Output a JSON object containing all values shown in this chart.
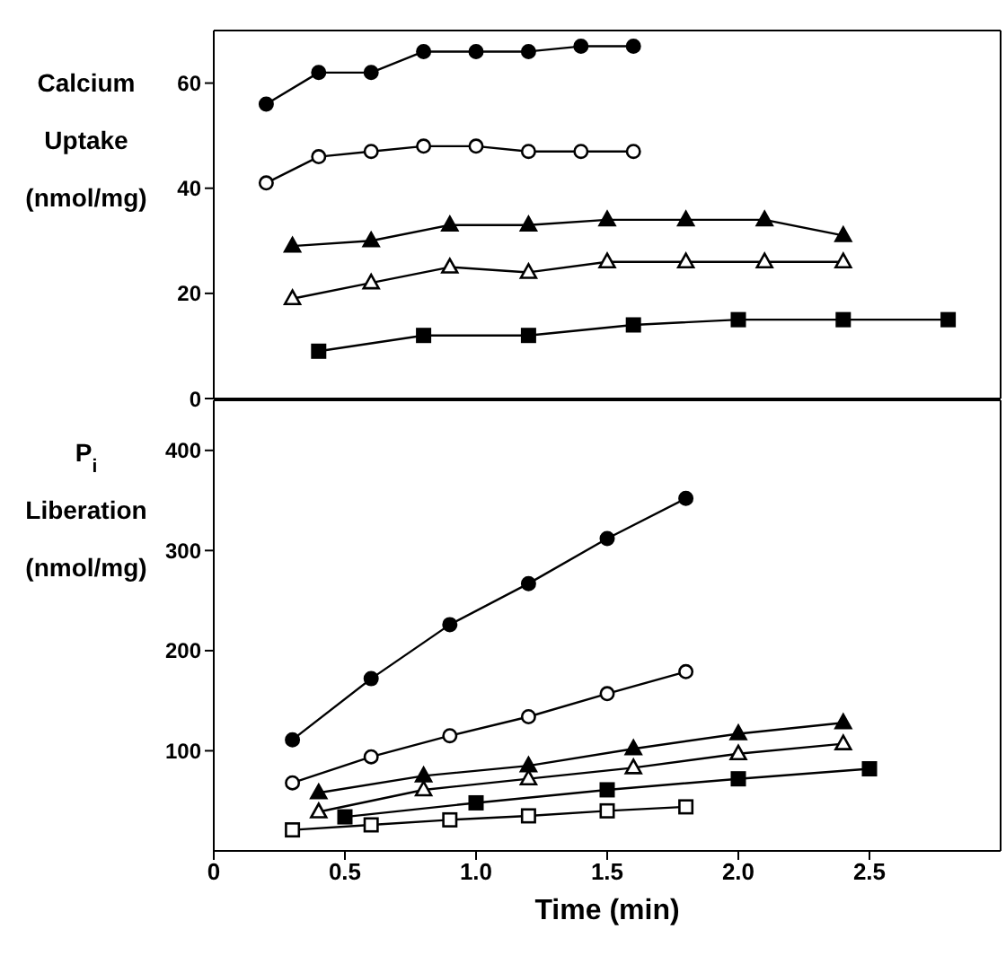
{
  "chart_data": [
    {
      "type": "line",
      "ylabel": "Calcium Uptake (nmol/mg)",
      "xlim": [
        0,
        3
      ],
      "xticks": [
        0,
        0.5,
        1,
        1.5,
        2,
        2.5
      ],
      "ylim": [
        0,
        70
      ],
      "yticks": [
        0,
        20,
        40,
        60
      ],
      "tick_labels": "y",
      "line_style": "solid",
      "series": [
        {
          "color": "#000000",
          "marker": "circle",
          "x": [
            0.2,
            0.4,
            0.6,
            0.8,
            1.0,
            1.2,
            1.4,
            1.6
          ],
          "values": [
            56,
            62,
            62,
            66,
            66,
            66,
            67,
            67
          ]
        },
        {
          "color": "#000000",
          "marker": "circle",
          "x": [
            0.2,
            0.4,
            0.6,
            0.8,
            1.0,
            1.2,
            1.4,
            1.6
          ],
          "values": [
            41,
            46,
            47,
            48,
            48,
            47,
            47,
            47
          ]
        },
        {
          "color": "#000000",
          "marker": "triangle",
          "x": [
            0.3,
            0.6,
            0.9,
            1.2,
            1.5,
            1.8,
            2.1,
            2.4
          ],
          "values": [
            29,
            30,
            33,
            33,
            34,
            34,
            34,
            31
          ]
        },
        {
          "color": "#000000",
          "marker": "triangle",
          "x": [
            0.3,
            0.6,
            0.9,
            1.2,
            1.5,
            1.8,
            2.1,
            2.4
          ],
          "values": [
            19,
            22,
            25,
            24,
            26,
            26,
            26,
            26
          ]
        },
        {
          "color": "#000000",
          "marker": "square",
          "x": [
            0.4,
            0.8,
            1.2,
            1.6,
            2.0,
            2.4,
            2.8
          ],
          "values": [
            9,
            12,
            12,
            14,
            15,
            15,
            15
          ]
        }
      ]
    },
    {
      "type": "line",
      "ylabel": "P$_{i}$ Liberation (nmol/mg)",
      "xlabel": "Time   (min)",
      "xlim": [
        0,
        3
      ],
      "xticks": [
        0,
        0.5,
        {
          "value": 1,
          "label": "1.0"
        },
        1.5,
        {
          "value": 2,
          "label": "2.0"
        },
        2.5
      ],
      "ylim": [
        0,
        450
      ],
      "yticks": [
        100,
        200,
        300,
        400
      ],
      "line_style": "solid",
      "series": [
        {
          "color": "#000000",
          "marker": "circle",
          "x": [
            0.3,
            0.6,
            0.9,
            1.2,
            1.5,
            1.8
          ],
          "values": [
            111,
            172,
            226,
            267,
            312,
            352
          ]
        },
        {
          "color": "#000000",
          "marker": "circle",
          "x": [
            0.3,
            0.6,
            0.9,
            1.2,
            1.5,
            1.8
          ],
          "values": [
            68,
            94,
            115,
            134,
            157,
            179
          ]
        },
        {
          "color": "#000000",
          "marker": "triangle",
          "x": [
            0.4,
            0.8,
            1.2,
            1.6,
            2.0,
            2.4
          ],
          "values": [
            58,
            75,
            85,
            102,
            117,
            128
          ]
        },
        {
          "color": "#000000",
          "marker": "triangle",
          "x": [
            0.4,
            0.8,
            1.2,
            1.6,
            2.0,
            2.4
          ],
          "values": [
            39,
            61,
            72,
            83,
            97,
            107
          ]
        },
        {
          "color": "#000000",
          "marker": "square",
          "x": [
            0.5,
            1.0,
            1.5,
            2.0,
            2.5
          ],
          "values": [
            34,
            48,
            61,
            72,
            82
          ]
        },
        {
          "color": "#000000",
          "marker": "square",
          "x": [
            0.3,
            0.6,
            0.9,
            1.2,
            1.5,
            1.8
          ],
          "values": [
            21,
            26,
            31,
            35,
            40,
            44
          ]
        }
      ]
    }
  ]
}
